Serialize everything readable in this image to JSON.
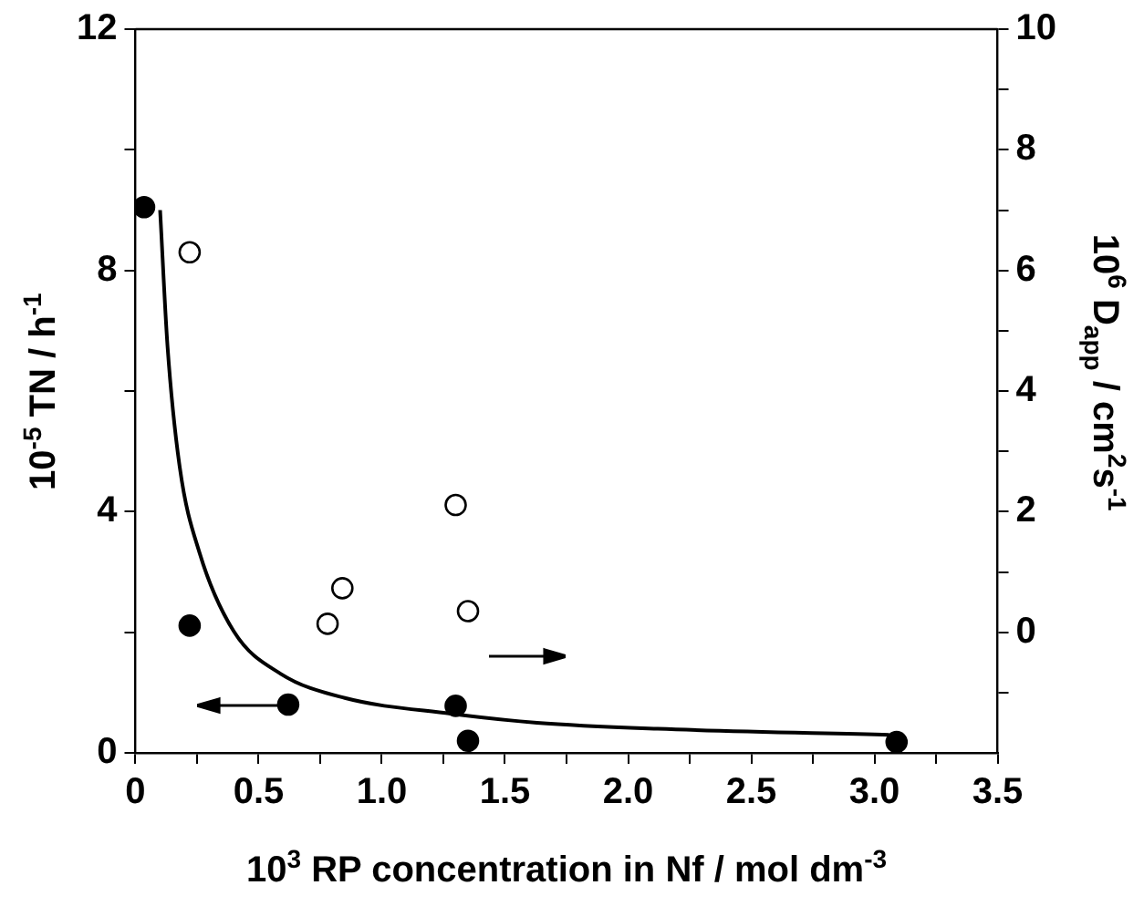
{
  "chart_data": {
    "type": "scatter",
    "xlabel": "10$^{3}$ RP concentration in Nf / mol dm$^{-3}$",
    "ylabel": "10$^{-5}$ TN / h$^{-1}$",
    "y2label": "10$^{6}$ D$_{app}$ / cm$^{2}$s$^{-1}$",
    "xlim": [
      0,
      3.5
    ],
    "xticks": [
      0,
      {
        "value": 0.25,
        "label": null
      },
      0.5,
      {
        "value": 0.75,
        "label": null
      },
      {
        "value": 1,
        "label": "1.0"
      },
      {
        "value": 1.25,
        "label": null
      },
      1.5,
      {
        "value": 1.75,
        "label": null
      },
      {
        "value": 2,
        "label": "2.0"
      },
      {
        "value": 2.25,
        "label": null
      },
      2.5,
      {
        "value": 2.75,
        "label": null
      },
      {
        "value": 3,
        "label": "3.0"
      },
      {
        "value": 3.25,
        "label": null
      },
      3.5
    ],
    "ylim": [
      0,
      12
    ],
    "yticks": [
      0,
      {
        "value": 2,
        "label": null
      },
      4,
      {
        "value": 6,
        "label": null
      },
      8,
      {
        "value": 10,
        "label": null
      },
      12
    ],
    "y2lim": [
      -2,
      10
    ],
    "y2ticks": [
      {
        "value": -1,
        "label": null
      },
      0,
      {
        "value": 1,
        "label": null
      },
      2,
      {
        "value": 3,
        "label": null
      },
      4,
      {
        "value": 5,
        "label": null
      },
      6,
      {
        "value": 7,
        "label": null
      },
      8,
      {
        "value": 9,
        "label": null
      },
      10
    ],
    "marker": "circle",
    "grid": false,
    "series": [
      {
        "color": "#000000",
        "x": [
          0.035,
          0.22,
          0.62,
          1.3,
          1.35,
          3.09
        ],
        "values": [
          9.05,
          2.11,
          0.8,
          0.78,
          0.2,
          0.18
        ]
      },
      {
        "color": "#000000",
        "axis": "y2",
        "marker": "circle",
        "x": [
          0.22,
          0.78,
          0.84,
          1.3,
          1.35
        ],
        "values": [
          6.3,
          0.14,
          0.73,
          2.11,
          0.35
        ]
      },
      {
        "type": "line",
        "color": "#000000",
        "marker": "none",
        "x": [
          0.1,
          0.13,
          0.18,
          0.26,
          0.4,
          0.59,
          0.85,
          1.28,
          1.63,
          2.12,
          3.06
        ],
        "values": [
          9.0,
          6.75,
          4.73,
          3.32,
          2.01,
          1.31,
          0.91,
          0.65,
          0.5,
          0.4,
          0.3
        ]
      }
    ]
  }
}
